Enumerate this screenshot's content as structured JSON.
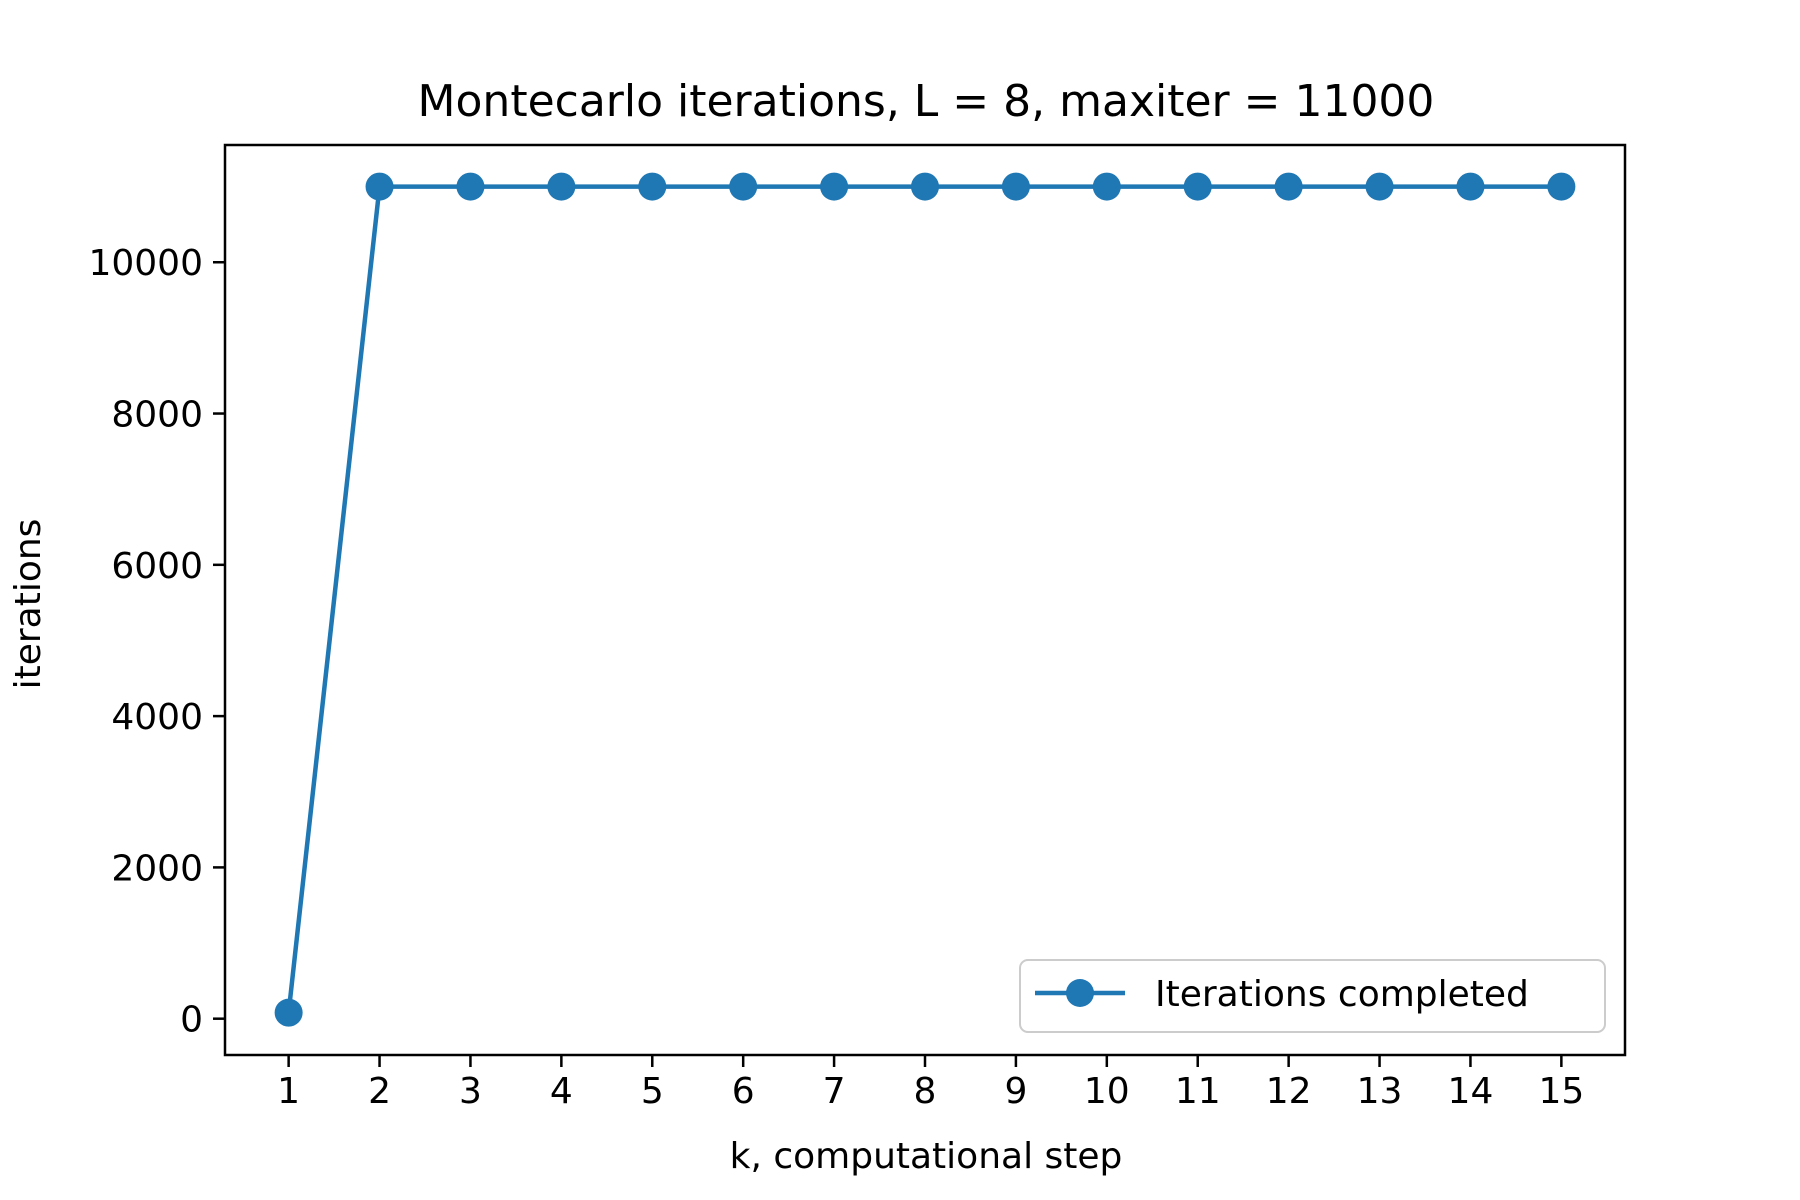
{
  "chart_data": {
    "type": "line",
    "title": "Montecarlo iterations, L = 8, maxiter = 11000",
    "xlabel": "k, computational step",
    "ylabel": "iterations",
    "x": [
      1,
      2,
      3,
      4,
      5,
      6,
      7,
      8,
      9,
      10,
      11,
      12,
      13,
      14,
      15
    ],
    "x_tick_labels": [
      "1",
      "2",
      "3",
      "4",
      "5",
      "6",
      "7",
      "8",
      "9",
      "10",
      "11",
      "12",
      "13",
      "14",
      "15"
    ],
    "y_ticks": [
      0,
      2000,
      4000,
      6000,
      8000,
      10000
    ],
    "y_tick_labels": [
      "0",
      "2000",
      "4000",
      "6000",
      "8000",
      "10000"
    ],
    "xlim": [
      0.3,
      15.7
    ],
    "ylim": [
      -480,
      11550
    ],
    "grid": false,
    "legend_position": "lower-right",
    "series": [
      {
        "name": "Iterations completed",
        "color": "#1f77b4",
        "marker": "circle",
        "values": [
          80,
          11000,
          11000,
          11000,
          11000,
          11000,
          11000,
          11000,
          11000,
          11000,
          11000,
          11000,
          11000,
          11000,
          11000
        ]
      }
    ]
  }
}
